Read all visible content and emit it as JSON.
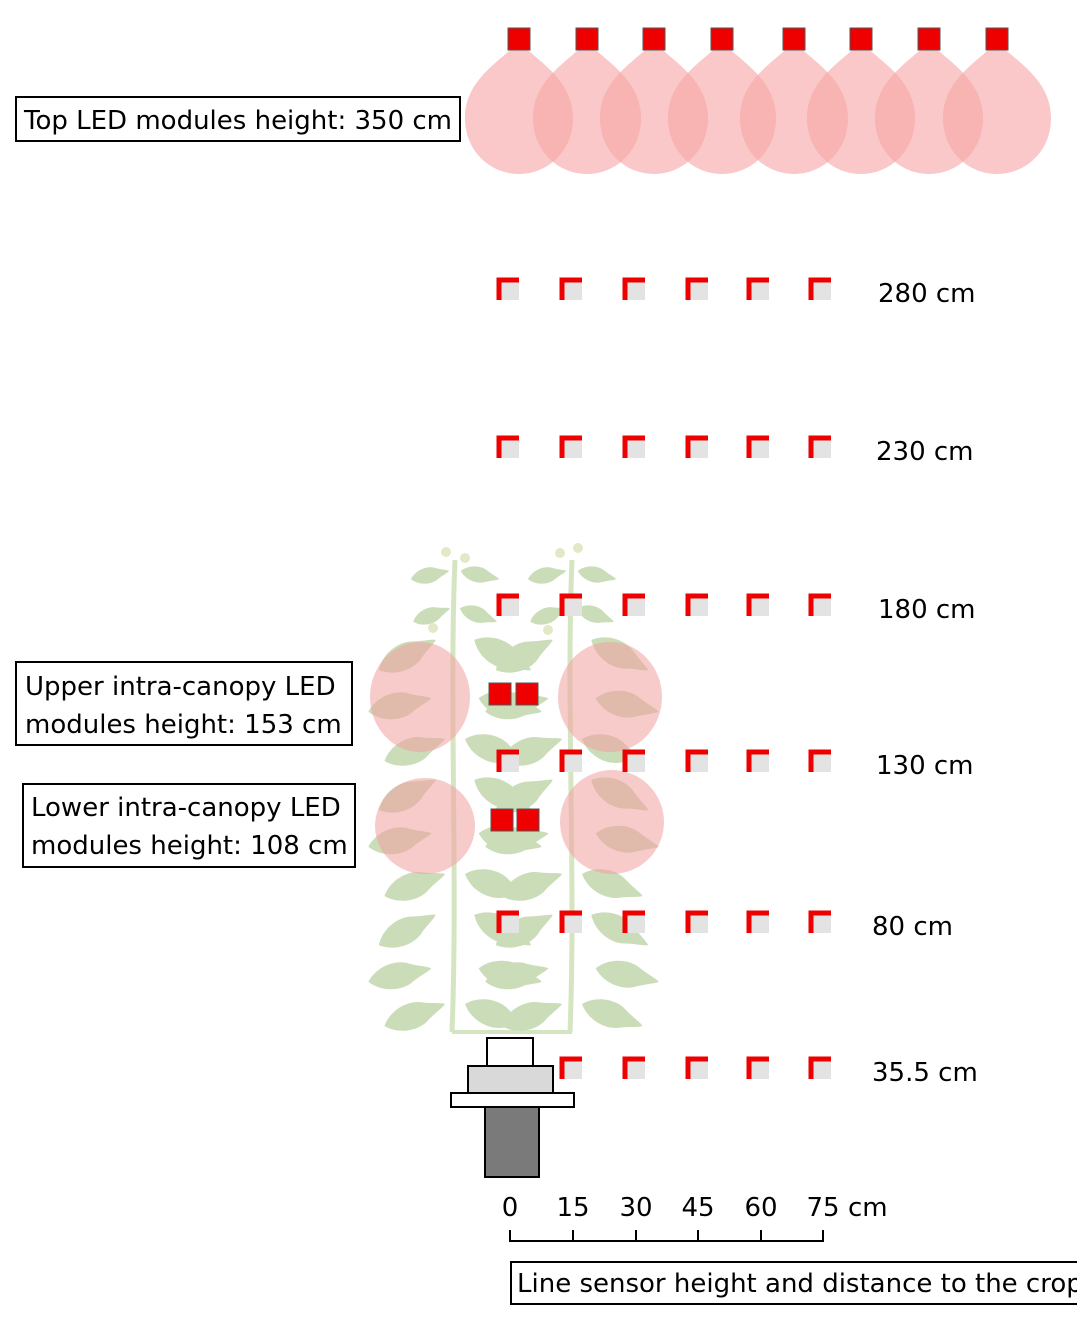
{
  "colors": {
    "led_red": "#ee0000",
    "light_cone": "#f7a6a6",
    "canopy_light": "#f3a0a0",
    "plant_green": "#9fc07f",
    "stem_green": "#b5d08f",
    "sensor_gray": "#e3e3e3",
    "base_dark": "#7a7a7a"
  },
  "labels": {
    "top_led": "Top LED modules height: 350 cm",
    "upper_line1": "Upper intra-canopy LED",
    "upper_line2": "modules height: 153 cm",
    "lower_line1": "Lower intra-canopy LED",
    "lower_line2": "modules height: 108 cm",
    "line_sensor": "Line sensor height and distance to the crop"
  },
  "sensor_rows": [
    {
      "height": "280 cm",
      "count": 6
    },
    {
      "height": "230 cm",
      "count": 6
    },
    {
      "height": "180 cm",
      "count": 6
    },
    {
      "height": "130 cm",
      "count": 6
    },
    {
      "height": "80 cm",
      "count": 6
    },
    {
      "height": "35.5 cm",
      "count": 5
    }
  ],
  "distance_axis": {
    "ticks": [
      "0",
      "15",
      "30",
      "45",
      "60",
      "75"
    ],
    "unit": "cm"
  },
  "top_led_count": 8,
  "icons": {
    "sensor": "red-corner-square-icon",
    "led": "red-square-led-icon",
    "plant": "tomato-plant-icon",
    "pot": "pot-on-stand-icon"
  }
}
